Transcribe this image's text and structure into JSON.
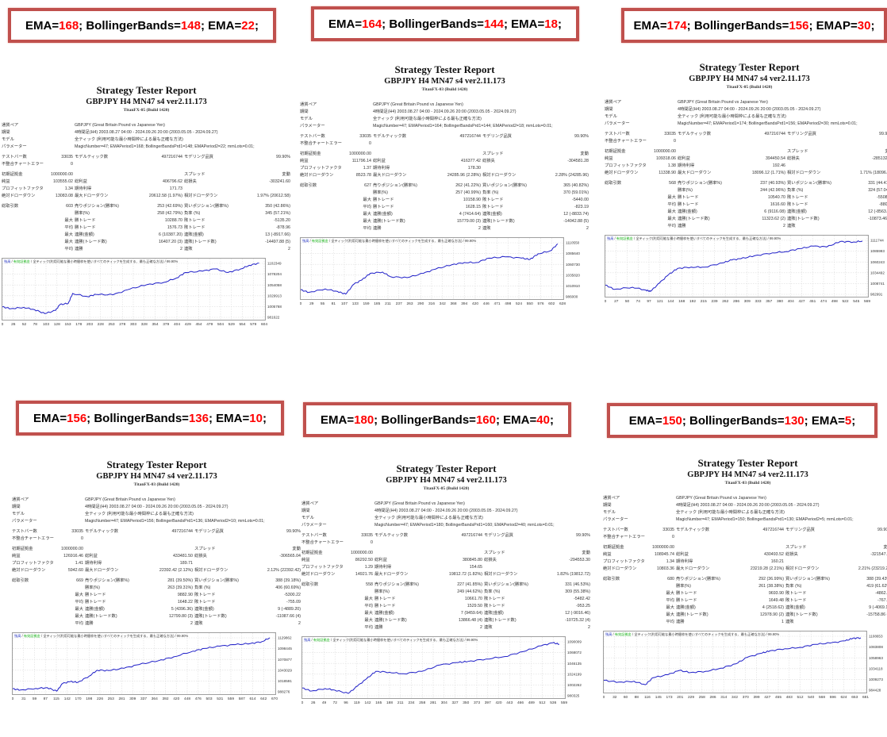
{
  "headers": [
    {
      "l1": "EMA=",
      "v1": "168",
      "l2": "; BollingerBands=",
      "v2": "148",
      "l3": "; EMA=",
      "v3": "22",
      "end": ";"
    },
    {
      "l1": "EMA=",
      "v1": "164",
      "l2": "; BollingerBands=",
      "v2": "144",
      "l3": "; EMA=",
      "v3": "18",
      "end": ";"
    },
    {
      "l1": "EMA=",
      "v1": "174",
      "l2": "; BollingerBands=",
      "v2": "156",
      "l3": "; EMAP=",
      "v3": "30",
      "end": ";"
    },
    {
      "l1": "EMA=",
      "v1": "156",
      "l2": "; BollingerBands=",
      "v2": "136",
      "l3": "; EMA=",
      "v3": "10",
      "end": ";"
    },
    {
      "l1": "EMA=",
      "v1": "180",
      "l2": "; BollingerBands=",
      "v2": "160",
      "l3": "; EMA=",
      "v3": "40",
      "end": ";"
    },
    {
      "l1": "EMA=",
      "v1": "150",
      "l2": "; BollingerBands=",
      "v2": "130",
      "l3": "; EMA=",
      "v3": "5",
      "end": ";"
    }
  ],
  "common": {
    "title": "Strategy Tester Report",
    "subtitle": "GBPJPY H4 MN47 s4 ver2.11.173",
    "pair": "GBPJPY (Great Britain Pound vs Japanese Yen)",
    "period": "4時間足(H4) 2003.08.27 04:00 - 2024.09.26 20:00 (2003.05.05 - 2024.09.27)",
    "model": "全ティック (利用可能な最小時間枠による最も正確な方法)",
    "bars": "33035",
    "ticks": "497216744",
    "quality": "99.90%",
    "errors": "0",
    "deposit": "1000000.00",
    "spread": "変動",
    "chart_balance": "残高",
    "chart_sep": " / ",
    "chart_equity": "有効証拠金",
    "chart_desc": " / 全ティック(利用可能な最小時間枠を使いすべてのティックを生成する、最も正確な方法) / 99.90%"
  },
  "labels": {
    "pair": "通貨ペア",
    "period": "期間",
    "model": "モデル",
    "params": "パラメーター",
    "bars": "テストバー数",
    "ticks": "モデルティック数",
    "quality": "モデリング品質",
    "errors": "不整合チャートエラー",
    "deposit": "初期証拠金",
    "spread": "スプレッド",
    "net": "純益",
    "gross_profit": "総利益",
    "gross_loss": "総損失",
    "pf": "プロフィットファクタ",
    "expected": "期待利得",
    "abs_dd": "絶対ドローダウン",
    "max_dd": "最大ドローダウン",
    "rel_dd": "相対ドローダウン",
    "total": "総取引数",
    "short": "売りポジション(勝率%)",
    "long": "買いポジション(勝率%)",
    "won": "勝率(%)",
    "lost": "負率 (%)",
    "largest": "最大",
    "average": "平均",
    "win_trade": "勝トレード",
    "loss_trade": "敗トレード",
    "consec_wins_amt": "連勝(金額)",
    "consec_losses_amt": "連敗(金額)",
    "consec_wins_cnt": "連勝(トレード数)",
    "consec_losses_cnt": "連敗(トレード数)",
    "consec_wins": "連勝",
    "consec_losses": "連敗"
  },
  "reports": [
    {
      "server": "TitanFX-05 (Build 1420)",
      "params": "MagicNumber=47; EMAPeriod1=168; BollingerBandsPrd1=148; EMAPeriod2=22; mmLots=0.01;",
      "net": "103555.02",
      "gross_profit": "406796.62",
      "gross_loss": "-303241.60",
      "pf": "1.34",
      "expected": "171.73",
      "abs_dd": "13083.08",
      "max_dd": "20612.58 (1.97%)",
      "rel_dd": "1.97% (20612.58)",
      "total": "603",
      "short": "253 (42.69%)",
      "long": "350 (42.86%)",
      "won": "258 (42.79%)",
      "lost": "345 (57.21%)",
      "largest_win": "10288.70",
      "largest_loss": "-5135.20",
      "avg_win": "1576.73",
      "avg_loss": "-878.96",
      "mcw": "6 (10387.20)",
      "mcl": "13 (-8917.66)",
      "mcp": "16407.20 (3)",
      "mcloss": "-14497.88 (5)",
      "acw": "2",
      "acl": "2",
      "chart": {
        "xticks": [
          "0",
          "26",
          "52",
          "78",
          "103",
          "128",
          "153",
          "178",
          "203",
          "228",
          "253",
          "278",
          "303",
          "328",
          "354",
          "379",
          "404",
          "429",
          "454",
          "479",
          "504",
          "529",
          "554",
          "579",
          "604"
        ],
        "yticks": [
          "981622",
          "1005768",
          "1029913",
          "1054058",
          "1078204",
          "1102349"
        ],
        "xmax": 604,
        "ymin": 981622,
        "ymax": 1102349,
        "points": [
          [
            0,
            1005000
          ],
          [
            20,
            1001000
          ],
          [
            50,
            1004000
          ],
          [
            75,
            999000
          ],
          [
            100,
            990000
          ],
          [
            125,
            997000
          ],
          [
            135,
            1010000
          ],
          [
            155,
            1013000
          ],
          [
            165,
            1035000
          ],
          [
            200,
            1028000
          ],
          [
            220,
            1033000
          ],
          [
            260,
            1032000
          ],
          [
            300,
            1045000
          ],
          [
            340,
            1055000
          ],
          [
            380,
            1060000
          ],
          [
            410,
            1070000
          ],
          [
            430,
            1082000
          ],
          [
            470,
            1085000
          ],
          [
            500,
            1090000
          ],
          [
            530,
            1082000
          ],
          [
            560,
            1090000
          ],
          [
            580,
            1098000
          ],
          [
            603,
            1103000
          ]
        ]
      }
    },
    {
      "server": "TitanFX-03 (Build 1420)",
      "params": "MagicNumber=47; EMAPeriod1=164; BollingerBandsPrd1=144; EMAPeriod2=18; mmLots=0.01;",
      "net": "111796.14",
      "gross_profit": "416377.42",
      "gross_loss": "-304581.28",
      "pf": "1.37",
      "expected": "178.30",
      "abs_dd": "8523.78",
      "max_dd": "24285.96 (2.28%)",
      "rel_dd": "2.28% (24285.96)",
      "total": "627",
      "short": "262 (41.22%)",
      "long": "365 (40.82%)",
      "won": "257 (40.99%)",
      "lost": "370 (59.01%)",
      "largest_win": "10158.90",
      "largest_loss": "-5440.00",
      "avg_win": "1628.15",
      "avg_loss": "-823.19",
      "mcw": "4 (7414.64)",
      "mcl": "12 (-8833.74)",
      "mcp": "15779.00 (3)",
      "mcloss": "-14042.88 (5)",
      "acw": "2",
      "acl": "2",
      "chart": {
        "xticks": [
          "0",
          "29",
          "55",
          "81",
          "107",
          "133",
          "159",
          "185",
          "211",
          "237",
          "263",
          "290",
          "316",
          "342",
          "368",
          "394",
          "420",
          "446",
          "471",
          "498",
          "524",
          "550",
          "576",
          "602",
          "628"
        ],
        "yticks": [
          "986000",
          "1010910",
          "1035820",
          "1060730",
          "1085640",
          "1110550"
        ],
        "xmax": 628,
        "ymin": 986000,
        "ymax": 1110550,
        "points": [
          [
            0,
            1002000
          ],
          [
            20,
            996000
          ],
          [
            60,
            1004000
          ],
          [
            90,
            998000
          ],
          [
            110,
            992000
          ],
          [
            130,
            1015000
          ],
          [
            150,
            1025000
          ],
          [
            170,
            1040000
          ],
          [
            200,
            1043000
          ],
          [
            220,
            1032000
          ],
          [
            260,
            1030000
          ],
          [
            300,
            1040000
          ],
          [
            330,
            1050000
          ],
          [
            370,
            1060000
          ],
          [
            400,
            1065000
          ],
          [
            430,
            1065000
          ],
          [
            460,
            1075000
          ],
          [
            500,
            1078000
          ],
          [
            540,
            1075000
          ],
          [
            560,
            1072000
          ],
          [
            580,
            1085000
          ],
          [
            610,
            1092000
          ],
          [
            628,
            1108000
          ]
        ]
      }
    },
    {
      "server": "TitanFX-05 (Build 1420)",
      "params": "MagicNumber=47; EMAPeriod1=174; BollingerBandsPrd1=156; EMAPeriod2=30; mmLots=0.01;",
      "net": "109318.06",
      "gross_profit": "394450.54",
      "gross_loss": "-285132.48",
      "pf": "1.38",
      "expected": "192.46",
      "abs_dd": "11338.90",
      "max_dd": "18096.12 (1.71%)",
      "rel_dd": "1.71% (18096.12)",
      "total": "568",
      "short": "237 (40.93%)",
      "long": "331 (44.41%)",
      "won": "244 (42.96%)",
      "lost": "324 (57.04%)",
      "largest_win": "10540.70",
      "largest_loss": "-5508.20",
      "avg_win": "1616.60",
      "avg_loss": "-880.04",
      "mcw": "6 (9116.08)",
      "mcl": "12 (-8563.46)",
      "mcp": "11323.62 (2)",
      "mcloss": "-10873.46 (4)",
      "acw": "2",
      "acl": "2",
      "chart": {
        "xticks": [
          "0",
          "27",
          "50",
          "74",
          "97",
          "121",
          "144",
          "168",
          "192",
          "215",
          "239",
          "262",
          "286",
          "309",
          "333",
          "357",
          "380",
          "404",
          "427",
          "451",
          "474",
          "498",
          "522",
          "545",
          "569"
        ],
        "yticks": [
          "982991",
          "1008741",
          "1034492",
          "1060243",
          "1085993",
          "1111744"
        ],
        "xmax": 569,
        "ymin": 982991,
        "ymax": 1111744,
        "points": [
          [
            0,
            1005000
          ],
          [
            20,
            995000
          ],
          [
            60,
            1000000
          ],
          [
            90,
            993000
          ],
          [
            100,
            990000
          ],
          [
            120,
            1010000
          ],
          [
            140,
            1030000
          ],
          [
            160,
            1045000
          ],
          [
            190,
            1048000
          ],
          [
            220,
            1048000
          ],
          [
            260,
            1058000
          ],
          [
            280,
            1065000
          ],
          [
            300,
            1068000
          ],
          [
            330,
            1075000
          ],
          [
            370,
            1082000
          ],
          [
            400,
            1085000
          ],
          [
            430,
            1092000
          ],
          [
            460,
            1098000
          ],
          [
            490,
            1096000
          ],
          [
            520,
            1109000
          ],
          [
            550,
            1108000
          ],
          [
            569,
            1110000
          ]
        ]
      }
    },
    {
      "server": "TitanFX-03 (Build 1420)",
      "params": "MagicNumber=47; EMAPeriod1=156; BollingerBandsPrd1=136; EMAPeriod2=10; mmLots=0.01;",
      "net": "126916.46",
      "gross_profit": "433481.50",
      "gross_loss": "-306565.04",
      "pf": "1.41",
      "expected": "189.71",
      "abs_dd": "5942.60",
      "max_dd": "22392.42 (2.12%)",
      "rel_dd": "2.12% (22392.42)",
      "total": "669",
      "short": "281 (39.50%)",
      "long": "388 (39.18%)",
      "won": "263 (39.31%)",
      "lost": "406 (60.69%)",
      "largest_win": "9882.90",
      "largest_loss": "-5300.22",
      "avg_win": "1648.22",
      "avg_loss": "-755.09",
      "mcw": "5 (4396.36)",
      "mcl": "9 (-4889.20)",
      "mcp": "12799.80 (3)",
      "mcloss": "-11087.66 (4)",
      "acw": "2",
      "acl": "2",
      "chart": {
        "xticks": [
          "0",
          "31",
          "59",
          "87",
          "115",
          "142",
          "170",
          "198",
          "226",
          "253",
          "281",
          "309",
          "337",
          "364",
          "392",
          "420",
          "448",
          "476",
          "503",
          "531",
          "559",
          "587",
          "614",
          "642",
          "670"
        ],
        "yticks": [
          "988276",
          "1018591",
          "1043029",
          "1070877",
          "1098445",
          "1129862"
        ],
        "xmax": 670,
        "ymin": 988276,
        "ymax": 1129862,
        "points": [
          [
            0,
            996000
          ],
          [
            20,
            993000
          ],
          [
            60,
            997000
          ],
          [
            90,
            999000
          ],
          [
            115,
            990000
          ],
          [
            130,
            1010000
          ],
          [
            150,
            1015000
          ],
          [
            170,
            1013000
          ],
          [
            200,
            1030000
          ],
          [
            220,
            1045000
          ],
          [
            250,
            1044000
          ],
          [
            290,
            1050000
          ],
          [
            330,
            1060000
          ],
          [
            380,
            1070000
          ],
          [
            420,
            1080000
          ],
          [
            470,
            1095000
          ],
          [
            500,
            1102000
          ],
          [
            540,
            1108000
          ],
          [
            580,
            1112000
          ],
          [
            620,
            1115000
          ],
          [
            650,
            1120000
          ],
          [
            670,
            1130000
          ]
        ]
      }
    },
    {
      "server": "TitanFX-05 (Build 1420)",
      "params": "MagicNumber=47; EMAPeriod1=180; BollingerBandsPrd1=160; EMAPeriod2=40; mmLots=0.01;",
      "net": "86292.50",
      "gross_profit": "380845.80",
      "gross_loss": "-294553.30",
      "pf": "1.29",
      "expected": "154.65",
      "abs_dd": "14921.76",
      "max_dd": "19812.72 (1.82%)",
      "rel_dd": "1.82% (19812.72)",
      "total": "558",
      "short": "227 (41.85%)",
      "long": "331 (46.53%)",
      "won": "249 (44.62%)",
      "lost": "309 (55.38%)",
      "largest_win": "10661.70",
      "largest_loss": "-5482.42",
      "avg_win": "1529.50",
      "avg_loss": "-953.25",
      "mcw": "7 (9459.64)",
      "mcl": "12 (-9016.46)",
      "mcp": "13866.48 (4)",
      "mcloss": "-10725.32 (4)",
      "acw": "2",
      "acl": "2",
      "chart": {
        "xticks": [
          "0",
          "26",
          "49",
          "72",
          "96",
          "119",
          "142",
          "165",
          "188",
          "211",
          "234",
          "258",
          "281",
          "304",
          "327",
          "350",
          "373",
          "397",
          "420",
          "443",
          "466",
          "489",
          "512",
          "536",
          "559"
        ],
        "yticks": [
          "980325",
          "1002262",
          "1024199",
          "1046135",
          "1068072",
          "1090009"
        ],
        "xmax": 559,
        "ymin": 980325,
        "ymax": 1090009,
        "points": [
          [
            0,
            996000
          ],
          [
            20,
            990000
          ],
          [
            50,
            995000
          ],
          [
            70,
            992000
          ],
          [
            100,
            985000
          ],
          [
            120,
            1000000
          ],
          [
            140,
            1015000
          ],
          [
            160,
            1030000
          ],
          [
            190,
            1028000
          ],
          [
            220,
            1025000
          ],
          [
            260,
            1030000
          ],
          [
            300,
            1043000
          ],
          [
            340,
            1048000
          ],
          [
            360,
            1050000
          ],
          [
            400,
            1055000
          ],
          [
            440,
            1060000
          ],
          [
            480,
            1070000
          ],
          [
            520,
            1082000
          ],
          [
            545,
            1088000
          ],
          [
            559,
            1085000
          ]
        ]
      }
    },
    {
      "server": "TitanFX-03 (Build 1420)",
      "params": "MagicNumber=47; EMAPeriod1=150; BollingerBandsPrd1=130; EMAPeriod2=5; mmLots=0.01;",
      "net": "108945.74",
      "gross_profit": "430493.52",
      "gross_loss": "-321547.78",
      "pf": "1.34",
      "expected": "160.21",
      "abs_dd": "10803.36",
      "max_dd": "23219.28 (2.21%)",
      "rel_dd": "2.21% (23219.28)",
      "total": "680",
      "short": "292 (36.99%)",
      "long": "388 (39.43%)",
      "won": "261 (38.38%)",
      "lost": "419 (61.62%)",
      "largest_win": "9693.90",
      "largest_loss": "-4862.02",
      "avg_win": "1649.48",
      "avg_loss": "-767.42",
      "mcw": "4 (2518.62)",
      "mcl": "9 (-4069.18)",
      "mcp": "12978.90 (2)",
      "mcloss": "-15758.86 (7)",
      "acw": "1",
      "acl": "2",
      "chart": {
        "xticks": [
          "0",
          "32",
          "60",
          "88",
          "116",
          "145",
          "173",
          "201",
          "229",
          "258",
          "286",
          "314",
          "342",
          "370",
          "399",
          "427",
          "455",
          "483",
          "512",
          "540",
          "568",
          "596",
          "624",
          "653",
          "681"
        ],
        "yticks": [
          "984428",
          "1009273",
          "1034118",
          "1058963",
          "1083808",
          "1108653"
        ],
        "xmax": 681,
        "ymin": 984428,
        "ymax": 1108653,
        "points": [
          [
            0,
            1007000
          ],
          [
            40,
            1003000
          ],
          [
            80,
            1005000
          ],
          [
            110,
            997000
          ],
          [
            130,
            1013000
          ],
          [
            170,
            1020000
          ],
          [
            200,
            1030000
          ],
          [
            230,
            1025000
          ],
          [
            270,
            1028000
          ],
          [
            310,
            1035000
          ],
          [
            350,
            1045000
          ],
          [
            380,
            1060000
          ],
          [
            420,
            1070000
          ],
          [
            440,
            1075000
          ],
          [
            480,
            1080000
          ],
          [
            520,
            1083000
          ],
          [
            560,
            1090000
          ],
          [
            600,
            1093000
          ],
          [
            640,
            1098000
          ],
          [
            660,
            1104000
          ],
          [
            681,
            1105000
          ]
        ]
      }
    }
  ],
  "colors": {
    "frame": "#c0504d",
    "highlight": "#ff0000",
    "balance": "#1f1fc8",
    "equity_label": "#10b010",
    "balance_label": "#2030c0"
  }
}
